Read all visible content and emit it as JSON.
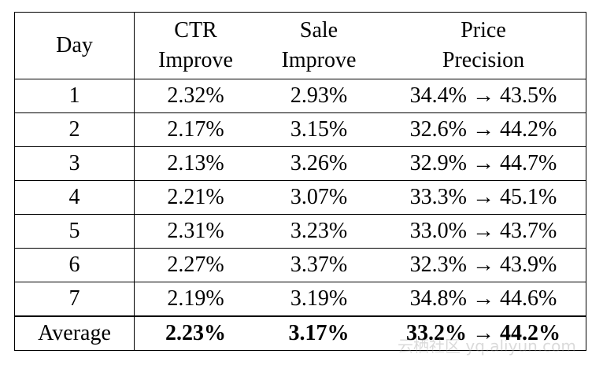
{
  "table": {
    "header": [
      [
        "Day"
      ],
      [
        "CTR",
        "Improve"
      ],
      [
        "Sale",
        "Improve"
      ],
      [
        "Price",
        "Precision"
      ]
    ],
    "rows": [
      [
        "1",
        "2.32%",
        "2.93%",
        "34.4% → 43.5%"
      ],
      [
        "2",
        "2.17%",
        "3.15%",
        "32.6% → 44.2%"
      ],
      [
        "3",
        "2.13%",
        "3.26%",
        "32.9% → 44.7%"
      ],
      [
        "4",
        "2.21%",
        "3.07%",
        "33.3% → 45.1%"
      ],
      [
        "5",
        "2.31%",
        "3.23%",
        "33.0% → 43.7%"
      ],
      [
        "6",
        "2.27%",
        "3.37%",
        "32.3% → 43.9%"
      ],
      [
        "7",
        "2.19%",
        "3.19%",
        "34.8% → 44.6%"
      ]
    ],
    "footer": [
      "Average",
      "2.23%",
      "3.17%",
      "33.2% → 44.2%"
    ]
  },
  "watermark": "云栖社区 yq.aliyun.com"
}
